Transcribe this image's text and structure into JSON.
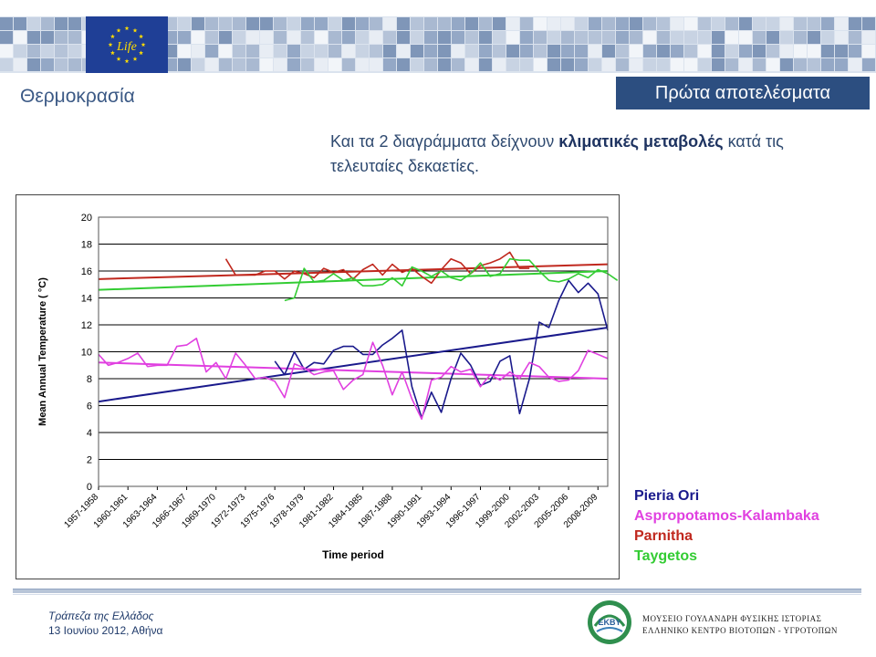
{
  "header": {
    "section_title": "Θερμοκρασία",
    "badge": "Πρώτα αποτελέσματα",
    "eu_logo_text": "Life"
  },
  "subtitle": {
    "part1": "Και τα 2 διαγράμματα δείχνουν ",
    "emphasis": "κλιματικές μεταβολές",
    "part2": " κατά τις τελευταίες δεκαετίες."
  },
  "colors": {
    "pieria": "#1a1a8c",
    "aspro": "#e040e0",
    "parnitha": "#c0281e",
    "taygetos": "#33cc33",
    "banner": "#2c4e80"
  },
  "chart_data": {
    "type": "line",
    "ylabel": "Mean Annual Temperature ( °C)",
    "xlabel": "Time period",
    "ylim": [
      0,
      20
    ],
    "yticks": [
      0,
      2,
      4,
      6,
      8,
      10,
      12,
      14,
      16,
      18,
      20
    ],
    "grid": true,
    "legend_position": "right-outside",
    "xtick_labels": [
      "1957-1958",
      "1960-1961",
      "1963-1964",
      "1966-1967",
      "1969-1970",
      "1972-1973",
      "1975-1976",
      "1978-1979",
      "1981-1982",
      "1984-1985",
      "1987-1988",
      "1990-1991",
      "1993-1994",
      "1996-1997",
      "1999-2000",
      "2002-2003",
      "2005-2006",
      "2008-2009"
    ],
    "series": [
      {
        "name": "Pieria Ori",
        "color": "#1a1a8c",
        "start": 1975,
        "values": [
          9.3,
          8.3,
          10.0,
          8.7,
          9.2,
          9.1,
          10.1,
          10.4,
          10.4,
          9.8,
          9.8,
          10.5,
          11.0,
          11.6,
          7.4,
          5.1,
          7.0,
          5.5,
          8.0,
          9.9,
          9.0,
          7.5,
          7.8,
          9.3,
          9.7,
          5.4,
          8.0,
          12.2,
          11.8,
          13.8,
          15.3,
          14.4,
          15.1,
          14.3,
          11.6
        ]
      },
      {
        "name": "Aspropotamos-Kalambaka",
        "color": "#e040e0",
        "start": 1957,
        "values": [
          9.8,
          9.0,
          9.2,
          9.5,
          9.9,
          8.9,
          9.0,
          9.0,
          10.4,
          10.5,
          11.0,
          8.5,
          9.2,
          8.0,
          9.9,
          9.0,
          8.0,
          8.1,
          7.8,
          6.6,
          9.1,
          8.8,
          8.3,
          8.5,
          8.6,
          7.2,
          7.9,
          8.3,
          10.7,
          9.0,
          6.8,
          8.5,
          6.5,
          5.0,
          7.9,
          8.1,
          8.9,
          8.5,
          8.7,
          7.4,
          8.3,
          7.9,
          8.5,
          8.0,
          9.2,
          8.9,
          8.1,
          7.8,
          7.9,
          8.6,
          10.1,
          9.8,
          9.5
        ]
      },
      {
        "name": "Parnitha",
        "color": "#c0281e",
        "start": 1970,
        "values": [
          16.9,
          15.7,
          15.7,
          15.7,
          16.0,
          16.0,
          15.4,
          16.0,
          15.8,
          15.5,
          16.2,
          15.9,
          16.1,
          15.4,
          16.1,
          16.5,
          15.7,
          16.5,
          15.9,
          16.2,
          15.6,
          15.1,
          16.1,
          16.9,
          16.6,
          15.8,
          16.4,
          16.6,
          16.9,
          17.4,
          16.2,
          16.2
        ]
      },
      {
        "name": "Taygetos",
        "color": "#33cc33",
        "start": 1976,
        "values": [
          13.8,
          14.0,
          16.2,
          15.2,
          15.3,
          15.8,
          15.3,
          15.5,
          14.9,
          14.9,
          15.0,
          15.5,
          14.9,
          16.3,
          16.0,
          15.6,
          16.0,
          15.5,
          15.3,
          15.8,
          16.6,
          15.6,
          15.8,
          16.9,
          16.8,
          16.8,
          16.0,
          15.3,
          15.2,
          15.4,
          15.8,
          15.5,
          16.1,
          15.8,
          15.3
        ]
      }
    ],
    "trend_lines": [
      {
        "name": "Pieria Ori",
        "color": "#1a1a8c",
        "x": [
          1957,
          2009
        ],
        "y": [
          6.3,
          11.8
        ]
      },
      {
        "name": "Aspropotamos-Kalambaka",
        "color": "#e040e0",
        "x": [
          1957,
          2009
        ],
        "y": [
          9.2,
          8.0
        ]
      },
      {
        "name": "Parnitha",
        "color": "#c0281e",
        "x": [
          1957,
          2009
        ],
        "y": [
          15.4,
          16.5
        ]
      },
      {
        "name": "Taygetos",
        "color": "#33cc33",
        "x": [
          1957,
          2009
        ],
        "y": [
          14.6,
          16.0
        ]
      }
    ]
  },
  "footer": {
    "bank_name": "Τράπεζα της Ελλάδος",
    "date_place": "13 Ιουνίου 2012, Αθήνα",
    "logo_text": "EKBY",
    "org_line1": "ΜΟΥΣΕΙΟ ΓΟΥΛΑΝΔΡΗ ΦΥΣΙΚΗΣ ΙΣΤΟΡΙΑΣ",
    "org_line2": "ΕΛΛΗΝΙΚΟ ΚΕΝΤΡΟ ΒΙΟΤΟΠΩΝ - ΥΓΡΟΤΟΠΩΝ"
  }
}
